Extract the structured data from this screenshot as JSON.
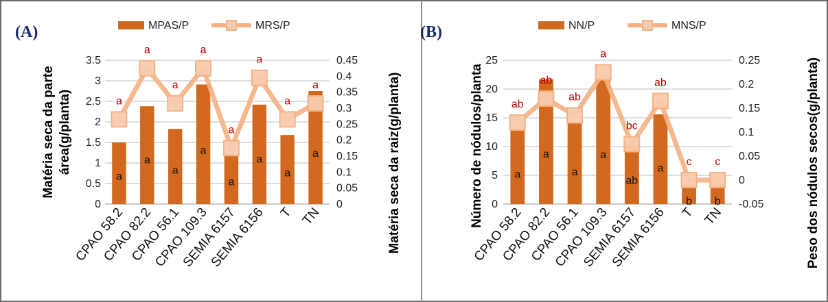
{
  "colors": {
    "bar": "#D2691E",
    "bar_light": "#E08A50",
    "line": "#F4B183",
    "marker_stroke": "#F4B183",
    "marker_fill": "#F8CBAD",
    "line_label": "#C00000",
    "bar_label": "#111111",
    "grid": "#BDBDBD",
    "panel_label": "#1B2A6B"
  },
  "chart_data": [
    {
      "panel_label": "(A)",
      "type": "bar",
      "categories": [
        "CPAO 58.2",
        "CPAO 82.2",
        "CPAO 56.1",
        "CPAO 109.3",
        "SEMIA 6157",
        "SEMIA 6156",
        "T",
        "TN"
      ],
      "series": [
        {
          "name": "MPAS/P",
          "type": "bar",
          "axis": "left",
          "values": [
            1.5,
            2.38,
            1.83,
            2.91,
            1.2,
            2.42,
            1.68,
            2.75
          ],
          "labels": [
            "a",
            "a",
            "a",
            "a",
            "a",
            "a",
            "a",
            "a"
          ]
        },
        {
          "name": "MRS/P",
          "type": "line",
          "axis": "right",
          "values": [
            0.265,
            0.425,
            0.315,
            0.425,
            0.175,
            0.395,
            0.265,
            0.315
          ],
          "labels": [
            "a",
            "a",
            "a",
            "a",
            "a",
            "a",
            "a",
            "a"
          ]
        }
      ],
      "ylabel_left": "Matéria seca da parte área(g/planta)",
      "ylabel_right": "Matéria seca da raiz(g/planta)",
      "ylim_left": [
        0,
        3.5
      ],
      "yticks_left": [
        "0",
        "0.5",
        "1",
        "1.5",
        "2",
        "2.5",
        "3",
        "3.5"
      ],
      "ylim_right": [
        0,
        0.45
      ],
      "yticks_right": [
        "0",
        "0.05",
        "0.1",
        "0.15",
        "0.2",
        "0.25",
        "0.3",
        "0.35",
        "0.4",
        "0.45"
      ],
      "legend_position": "top",
      "grid": true
    },
    {
      "panel_label": "(B)",
      "type": "bar",
      "categories": [
        "CPAO 58.2",
        "CPAO 82.2",
        "CPAO 56.1",
        "CPAO 109.3",
        "SEMIA 6157",
        "SEMIA 6156",
        "T",
        "TN"
      ],
      "series": [
        {
          "name": "NN/P",
          "type": "bar",
          "axis": "left",
          "values": [
            13,
            21.7,
            14,
            21.5,
            10.2,
            15.6,
            3.4,
            3.4
          ],
          "labels": [
            "a",
            "a",
            "a",
            "a",
            "ab",
            "a",
            "b",
            "b"
          ]
        },
        {
          "name": "MNS/P",
          "type": "line",
          "axis": "right",
          "values": [
            0.12,
            0.17,
            0.135,
            0.225,
            0.075,
            0.165,
            0.0,
            0.0
          ],
          "labels": [
            "ab",
            "ab",
            "ab",
            "a",
            "bc",
            "ab",
            "c",
            "c"
          ]
        }
      ],
      "ylabel_left": "Número de nódulos/planta",
      "ylabel_right": "Peso dos nódulos secos(g/planta)",
      "ylim_left": [
        0,
        25
      ],
      "yticks_left": [
        "0",
        "5",
        "10",
        "15",
        "20",
        "25"
      ],
      "ylim_right": [
        -0.05,
        0.25
      ],
      "yticks_right": [
        "-0.05",
        "0",
        "0.05",
        "0.1",
        "0.15",
        "0.2",
        "0.25"
      ],
      "legend_position": "top",
      "grid": true
    }
  ]
}
